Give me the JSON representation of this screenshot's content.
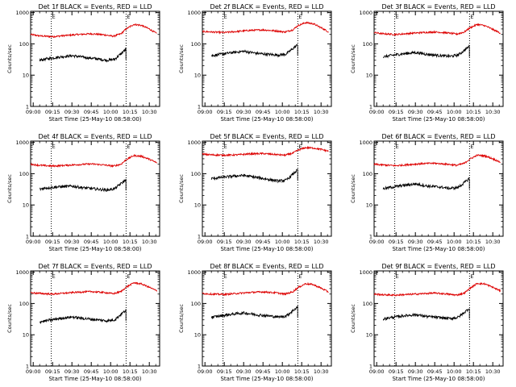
{
  "figure": {
    "xlabel": "Start Time (25-May-10 08:58:00)",
    "ylabel": "Counts/sec",
    "x_ticklabels": [
      "09:00",
      "09:15",
      "09:30",
      "09:45",
      "10:00",
      "10:15",
      "10:30"
    ],
    "y_ticklabels": [
      "1",
      "10",
      "100",
      "1000"
    ],
    "marker_label": "E",
    "colors": {
      "events": "#000000",
      "lld": "#dd0000",
      "axes": "#000000",
      "background": "#ffffff"
    }
  },
  "chart_data": [
    {
      "type": "line",
      "title": "Det 1f BLACK = Events, RED = LLD",
      "xlabel": "Start Time (25-May-10 08:58:00)",
      "ylabel": "Counts/sec",
      "yscale": "log",
      "ylim": [
        1,
        1100
      ],
      "xlim": [
        "08:58",
        "10:38"
      ],
      "markers_x": [
        "09:14",
        "10:12"
      ],
      "series": [
        {
          "key": "lld",
          "x": [
            "08:58",
            "09:05",
            "09:15",
            "09:25",
            "09:35",
            "09:45",
            "09:55",
            "10:02",
            "10:08",
            "10:12",
            "10:18",
            "10:24",
            "10:30",
            "10:36"
          ],
          "y": [
            200,
            180,
            170,
            185,
            200,
            210,
            195,
            175,
            210,
            300,
            420,
            390,
            300,
            210
          ]
        },
        {
          "key": "events",
          "x": [
            "09:05",
            "09:10",
            "09:20",
            "09:30",
            "09:40",
            "09:50",
            "09:57",
            "10:03",
            "10:08",
            "10:12"
          ],
          "y": [
            30,
            33,
            38,
            42,
            37,
            33,
            30,
            32,
            48,
            70
          ]
        }
      ]
    },
    {
      "type": "line",
      "title": "Det 2f BLACK = Events, RED = LLD",
      "xlabel": "Start Time (25-May-10 08:58:00)",
      "ylabel": "Counts/sec",
      "yscale": "log",
      "ylim": [
        1,
        1100
      ],
      "xlim": [
        "08:58",
        "10:38"
      ],
      "markers_x": [
        "09:14",
        "10:12"
      ],
      "series": [
        {
          "key": "lld",
          "x": [
            "08:58",
            "09:05",
            "09:15",
            "09:25",
            "09:35",
            "09:45",
            "09:55",
            "10:02",
            "10:08",
            "10:12",
            "10:18",
            "10:24",
            "10:30",
            "10:36"
          ],
          "y": [
            250,
            240,
            230,
            250,
            270,
            280,
            260,
            240,
            280,
            380,
            480,
            440,
            330,
            240
          ]
        },
        {
          "key": "events",
          "x": [
            "09:05",
            "09:10",
            "09:20",
            "09:30",
            "09:40",
            "09:50",
            "09:57",
            "10:03",
            "10:08",
            "10:12"
          ],
          "y": [
            42,
            45,
            52,
            58,
            50,
            46,
            44,
            47,
            70,
            95
          ]
        }
      ]
    },
    {
      "type": "line",
      "title": "Det 3f BLACK = Events, RED = LLD",
      "xlabel": "Start Time (25-May-10 08:58:00)",
      "ylabel": "Counts/sec",
      "yscale": "log",
      "ylim": [
        1,
        1100
      ],
      "xlim": [
        "08:58",
        "10:38"
      ],
      "markers_x": [
        "09:14",
        "10:12"
      ],
      "series": [
        {
          "key": "lld",
          "x": [
            "08:58",
            "09:05",
            "09:15",
            "09:25",
            "09:35",
            "09:45",
            "09:55",
            "10:02",
            "10:08",
            "10:12",
            "10:18",
            "10:24",
            "10:30",
            "10:36"
          ],
          "y": [
            230,
            210,
            200,
            215,
            230,
            240,
            225,
            205,
            240,
            320,
            420,
            380,
            290,
            220
          ]
        },
        {
          "key": "events",
          "x": [
            "09:05",
            "09:10",
            "09:20",
            "09:30",
            "09:40",
            "09:50",
            "09:57",
            "10:03",
            "10:08",
            "10:12"
          ],
          "y": [
            38,
            42,
            48,
            53,
            46,
            42,
            40,
            44,
            62,
            85
          ]
        }
      ]
    },
    {
      "type": "line",
      "title": "Det 4f BLACK = Events, RED = LLD",
      "xlabel": "Start Time (25-May-10 08:58:00)",
      "ylabel": "Counts/sec",
      "yscale": "log",
      "ylim": [
        1,
        1100
      ],
      "xlim": [
        "08:58",
        "10:38"
      ],
      "markers_x": [
        "09:14",
        "10:12"
      ],
      "series": [
        {
          "key": "lld",
          "x": [
            "08:58",
            "09:05",
            "09:15",
            "09:25",
            "09:35",
            "09:45",
            "09:55",
            "10:02",
            "10:08",
            "10:12",
            "10:18",
            "10:24",
            "10:30",
            "10:36"
          ],
          "y": [
            200,
            185,
            175,
            185,
            195,
            205,
            190,
            175,
            200,
            280,
            380,
            360,
            290,
            220
          ]
        },
        {
          "key": "events",
          "x": [
            "09:05",
            "09:10",
            "09:20",
            "09:30",
            "09:40",
            "09:50",
            "09:57",
            "10:03",
            "10:08",
            "10:12"
          ],
          "y": [
            32,
            35,
            38,
            40,
            35,
            32,
            30,
            33,
            48,
            65
          ]
        }
      ]
    },
    {
      "type": "line",
      "title": "Det 5f BLACK = Events, RED = LLD",
      "xlabel": "Start Time (25-May-10 08:58:00)",
      "ylabel": "Counts/sec",
      "yscale": "log",
      "ylim": [
        1,
        1100
      ],
      "xlim": [
        "08:58",
        "10:38"
      ],
      "markers_x": [
        "09:14",
        "10:12"
      ],
      "series": [
        {
          "key": "lld",
          "x": [
            "08:58",
            "09:05",
            "09:15",
            "09:25",
            "09:35",
            "09:45",
            "09:55",
            "10:02",
            "10:08",
            "10:12",
            "10:18",
            "10:24",
            "10:30",
            "10:36"
          ],
          "y": [
            420,
            400,
            390,
            400,
            430,
            440,
            410,
            390,
            450,
            560,
            680,
            660,
            600,
            520
          ]
        },
        {
          "key": "events",
          "x": [
            "09:05",
            "09:10",
            "09:20",
            "09:30",
            "09:40",
            "09:50",
            "09:57",
            "10:03",
            "10:08",
            "10:12"
          ],
          "y": [
            70,
            74,
            82,
            88,
            76,
            65,
            58,
            62,
            95,
            135
          ]
        }
      ]
    },
    {
      "type": "line",
      "title": "Det 6f BLACK = Events, RED = LLD",
      "xlabel": "Start Time (25-May-10 08:58:00)",
      "ylabel": "Counts/sec",
      "yscale": "log",
      "ylim": [
        1,
        1100
      ],
      "xlim": [
        "08:58",
        "10:38"
      ],
      "markers_x": [
        "09:14",
        "10:12"
      ],
      "series": [
        {
          "key": "lld",
          "x": [
            "08:58",
            "09:05",
            "09:15",
            "09:25",
            "09:35",
            "09:45",
            "09:55",
            "10:02",
            "10:08",
            "10:12",
            "10:18",
            "10:24",
            "10:30",
            "10:36"
          ],
          "y": [
            200,
            190,
            180,
            195,
            210,
            215,
            200,
            185,
            215,
            290,
            390,
            370,
            300,
            230
          ]
        },
        {
          "key": "events",
          "x": [
            "09:05",
            "09:10",
            "09:20",
            "09:30",
            "09:40",
            "09:50",
            "09:57",
            "10:03",
            "10:08",
            "10:12"
          ],
          "y": [
            33,
            36,
            42,
            47,
            40,
            37,
            34,
            36,
            52,
            72
          ]
        }
      ]
    },
    {
      "type": "line",
      "title": "Det 7f BLACK = Events, RED = LLD",
      "xlabel": "Start Time (25-May-10 08:58:00)",
      "ylabel": "Counts/sec",
      "yscale": "log",
      "ylim": [
        1,
        1100
      ],
      "xlim": [
        "08:58",
        "10:38"
      ],
      "markers_x": [
        "09:14",
        "10:12"
      ],
      "series": [
        {
          "key": "lld",
          "x": [
            "08:58",
            "09:05",
            "09:15",
            "09:25",
            "09:35",
            "09:45",
            "09:55",
            "10:02",
            "10:08",
            "10:12",
            "10:18",
            "10:24",
            "10:30",
            "10:36"
          ],
          "y": [
            220,
            210,
            200,
            215,
            230,
            240,
            225,
            205,
            240,
            330,
            460,
            420,
            330,
            250
          ]
        },
        {
          "key": "events",
          "x": [
            "09:05",
            "09:10",
            "09:20",
            "09:30",
            "09:40",
            "09:50",
            "09:57",
            "10:03",
            "10:08",
            "10:12"
          ],
          "y": [
            26,
            28,
            33,
            37,
            33,
            30,
            28,
            30,
            45,
            62
          ]
        }
      ]
    },
    {
      "type": "line",
      "title": "Det 8f BLACK = Events, RED = LLD",
      "xlabel": "Start Time (25-May-10 08:58:00)",
      "ylabel": "Counts/sec",
      "yscale": "log",
      "ylim": [
        1,
        1100
      ],
      "xlim": [
        "08:58",
        "10:38"
      ],
      "markers_x": [
        "09:14",
        "10:12"
      ],
      "series": [
        {
          "key": "lld",
          "x": [
            "08:58",
            "09:05",
            "09:15",
            "09:25",
            "09:35",
            "09:45",
            "09:55",
            "10:02",
            "10:08",
            "10:12",
            "10:18",
            "10:24",
            "10:30",
            "10:36"
          ],
          "y": [
            210,
            200,
            195,
            210,
            225,
            235,
            220,
            200,
            235,
            320,
            430,
            400,
            310,
            230
          ]
        },
        {
          "key": "events",
          "x": [
            "09:05",
            "09:10",
            "09:20",
            "09:30",
            "09:40",
            "09:50",
            "09:57",
            "10:03",
            "10:08",
            "10:12"
          ],
          "y": [
            36,
            39,
            45,
            50,
            44,
            40,
            37,
            40,
            58,
            80
          ]
        }
      ]
    },
    {
      "type": "line",
      "title": "Det 9f BLACK = Events, RED = LLD",
      "xlabel": "Start Time (25-May-10 08:58:00)",
      "ylabel": "Counts/sec",
      "yscale": "log",
      "ylim": [
        1,
        1100
      ],
      "xlim": [
        "08:58",
        "10:38"
      ],
      "markers_x": [
        "09:14",
        "10:12"
      ],
      "series": [
        {
          "key": "lld",
          "x": [
            "08:58",
            "09:05",
            "09:15",
            "09:25",
            "09:35",
            "09:45",
            "09:55",
            "10:02",
            "10:08",
            "10:12",
            "10:18",
            "10:24",
            "10:30",
            "10:36"
          ],
          "y": [
            200,
            190,
            185,
            195,
            205,
            215,
            200,
            185,
            215,
            300,
            440,
            420,
            330,
            250
          ]
        },
        {
          "key": "events",
          "x": [
            "09:05",
            "09:10",
            "09:20",
            "09:30",
            "09:40",
            "09:50",
            "09:57",
            "10:03",
            "10:08",
            "10:12"
          ],
          "y": [
            32,
            35,
            40,
            44,
            38,
            35,
            33,
            36,
            52,
            72
          ]
        }
      ]
    }
  ]
}
